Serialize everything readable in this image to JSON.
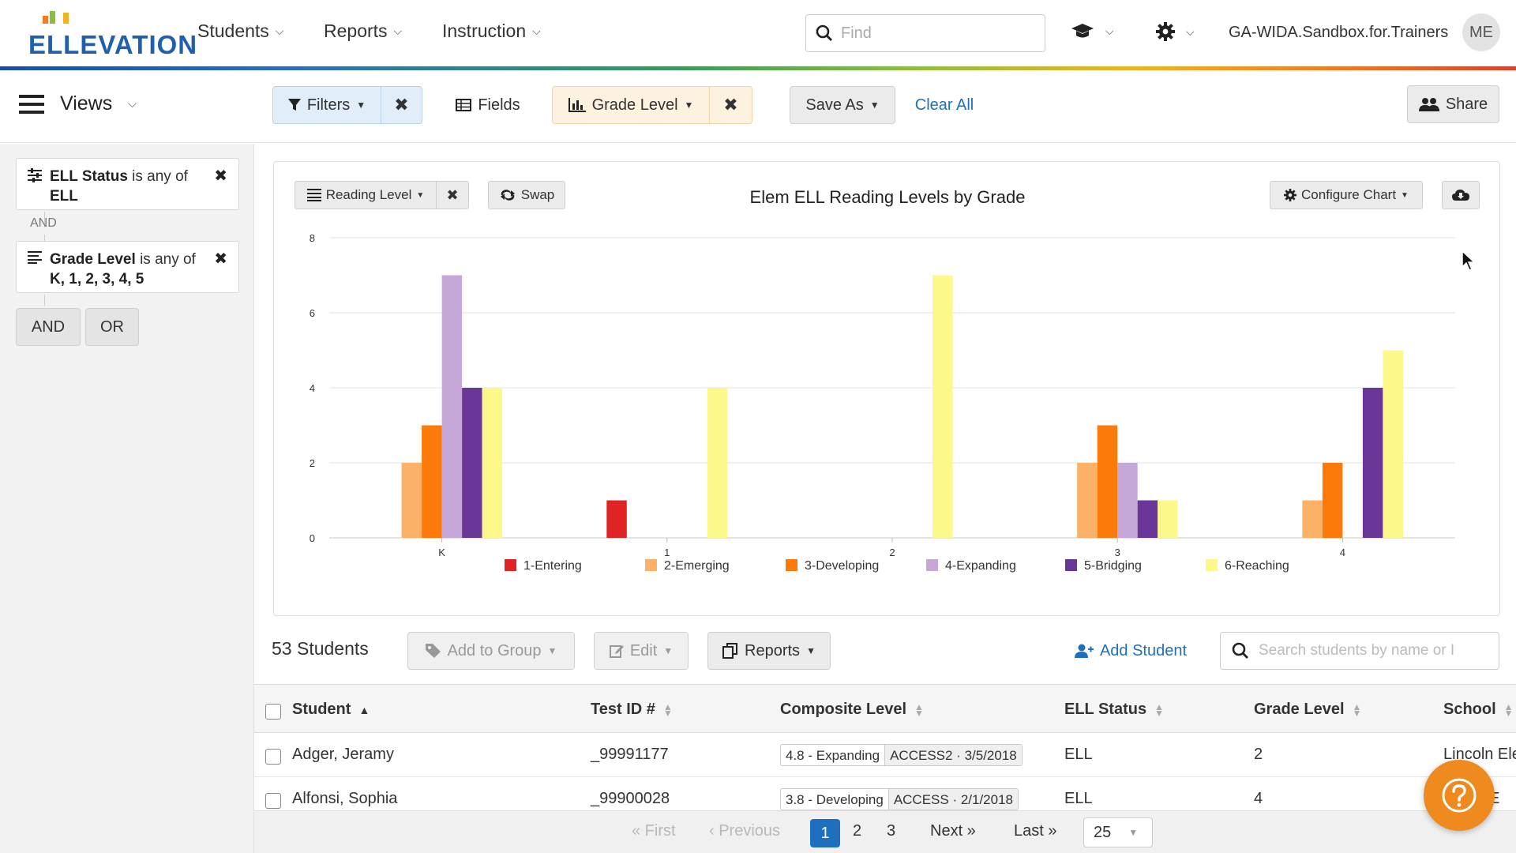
{
  "brand": {
    "logo_text": "ELLEVATION"
  },
  "nav": {
    "students": "Students",
    "reports": "Reports",
    "instruction": "Instruction",
    "find_placeholder": "Find",
    "org_name": "GA-WIDA.Sandbox.for.Trainers",
    "avatar_initials": "ME"
  },
  "toolbar": {
    "views": "Views",
    "filters": "Filters",
    "fields": "Fields",
    "grade_level": "Grade Level",
    "save_as": "Save As",
    "clear_all": "Clear All",
    "share": "Share"
  },
  "sidebar": {
    "filter1": {
      "field": "ELL Status",
      "op": "is any of",
      "value": "ELL"
    },
    "and_label": "AND",
    "filter2": {
      "field": "Grade Level",
      "op": "is any of",
      "value": "K, 1, 2, 3, 4, 5"
    },
    "and_button": "AND",
    "or_button": "OR"
  },
  "chart_panel": {
    "group_by": "Reading Level",
    "swap": "Swap",
    "title": "Elem ELL Reading Levels by Grade",
    "configure": "Configure Chart"
  },
  "chart_data": {
    "type": "bar",
    "title": "Elem ELL Reading Levels by Grade",
    "categories": [
      "K",
      "1",
      "2",
      "3",
      "4"
    ],
    "ylim": [
      0,
      8
    ],
    "yticks": [
      0,
      2,
      4,
      6,
      8
    ],
    "grid": true,
    "legend_position": "bottom",
    "series": [
      {
        "name": "1-Entering",
        "color": "#e02424",
        "values": [
          0,
          1,
          0,
          0,
          0
        ]
      },
      {
        "name": "2-Emerging",
        "color": "#fbb267",
        "values": [
          2,
          0,
          0,
          2,
          1
        ]
      },
      {
        "name": "3-Developing",
        "color": "#fb7a0a",
        "values": [
          3,
          0,
          0,
          3,
          2
        ]
      },
      {
        "name": "4-Expanding",
        "color": "#c6a8d8",
        "values": [
          7,
          0,
          0,
          2,
          0
        ]
      },
      {
        "name": "5-Bridging",
        "color": "#6a3798",
        "values": [
          4,
          0,
          0,
          1,
          4
        ]
      },
      {
        "name": "6-Reaching",
        "color": "#fdf88a",
        "values": [
          4,
          4,
          7,
          1,
          5
        ]
      }
    ]
  },
  "table": {
    "count": "53 Students",
    "add_to_group": "Add to Group",
    "edit": "Edit",
    "reports": "Reports",
    "add_student": "Add Student",
    "search_placeholder": "Search students by name or I",
    "headers": {
      "student": "Student",
      "test_id": "Test ID #",
      "composite": "Composite Level",
      "ell_status": "ELL Status",
      "grade": "Grade Level",
      "school": "School"
    },
    "rows": [
      {
        "name": "Adger, Jeramy",
        "test_id": "_99991177",
        "composite_level": "4.8 - Expanding",
        "composite_test": "ACCESS2 · 3/5/2018",
        "ell_status": "ELL",
        "grade": "2",
        "school": "Lincoln Ele"
      },
      {
        "name": "Alfonsi, Sophia",
        "test_id": "_99900028",
        "composite_level": "3.8 - Developing",
        "composite_test": "ACCESS · 2/1/2018",
        "ell_status": "ELL",
        "grade": "4",
        "school": "w E"
      }
    ]
  },
  "pager": {
    "first": "« First",
    "previous": "‹ Previous",
    "pages": [
      "1",
      "2",
      "3"
    ],
    "next": "Next »",
    "last": "Last »",
    "per_page": "25"
  }
}
